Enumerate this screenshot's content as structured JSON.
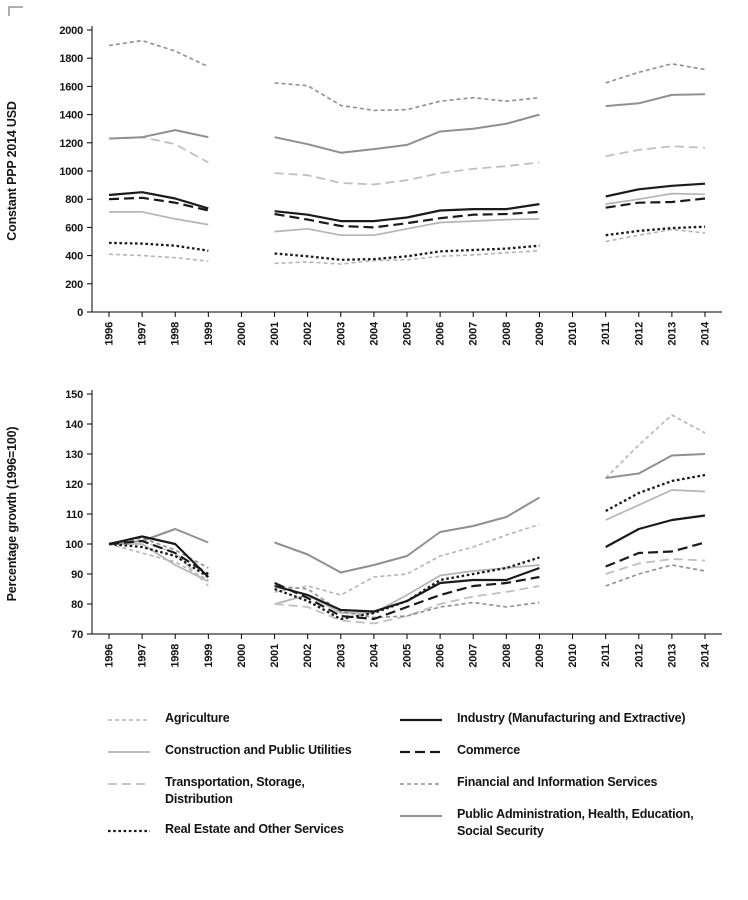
{
  "series_styles": [
    {
      "label": "Agriculture",
      "color": "#b5b5b5",
      "dash": "4 3",
      "width": 1.6
    },
    {
      "label": "Construction and Public Utilities",
      "color": "#b5b5b5",
      "dash": "",
      "width": 1.7
    },
    {
      "label": "Transportation, Storage, Distribution",
      "color": "#c0c0c0",
      "dash": "9 5",
      "width": 1.8
    },
    {
      "label": "Financial and Information Services",
      "color": "#8f8f8f",
      "dash": "4 3",
      "width": 1.6
    },
    {
      "label": "Public Administration, Health, Education, Social Security",
      "color": "#8f8f8f",
      "dash": "",
      "width": 2
    },
    {
      "label": "Real Estate and Other Services",
      "color": "#1a1a1a",
      "dash": "2.6 2.6",
      "width": 2.3
    },
    {
      "label": "Commerce",
      "color": "#1a1a1a",
      "dash": "10 5",
      "width": 2.2
    },
    {
      "label": "Industry (Manufacturing and Extractive)",
      "color": "#1a1a1a",
      "dash": "",
      "width": 2.2
    }
  ],
  "legend": {
    "columns": [
      [
        0,
        1,
        2,
        5
      ],
      [
        7,
        6,
        3,
        4
      ]
    ]
  },
  "chart_data": [
    {
      "type": "line",
      "title": "",
      "ylabel": "Constant PPP 2014 USD",
      "xlabel": "",
      "ylim": [
        0,
        2000
      ],
      "yticks": [
        0,
        200,
        400,
        600,
        800,
        1000,
        1200,
        1400,
        1600,
        1800,
        2000
      ],
      "x_years": [
        "1996",
        "1997",
        "1998",
        "1999",
        "2000",
        "2001",
        "2002",
        "2003",
        "2004",
        "2005",
        "2006",
        "2007",
        "2008",
        "2009",
        "2010",
        "2011",
        "2012",
        "2013",
        "2014"
      ],
      "grid": false,
      "series": [
        {
          "name": "Agriculture",
          "values": [
            410,
            400,
            385,
            360,
            null,
            345,
            355,
            340,
            365,
            370,
            395,
            405,
            420,
            435,
            null,
            500,
            545,
            585,
            560
          ]
        },
        {
          "name": "Construction and Public Utilities",
          "values": [
            710,
            710,
            660,
            620,
            null,
            570,
            590,
            545,
            545,
            590,
            635,
            645,
            655,
            660,
            null,
            765,
            800,
            840,
            835
          ]
        },
        {
          "name": "Transportation, Storage, Distribution",
          "values": [
            1230,
            1240,
            1190,
            1060,
            null,
            985,
            970,
            915,
            905,
            935,
            985,
            1015,
            1035,
            1060,
            null,
            1105,
            1150,
            1175,
            1165
          ]
        },
        {
          "name": "Financial and Information Services",
          "values": [
            1890,
            1925,
            1850,
            1740,
            null,
            1625,
            1605,
            1465,
            1430,
            1435,
            1495,
            1520,
            1495,
            1520,
            null,
            1625,
            1700,
            1760,
            1720
          ]
        },
        {
          "name": "Public Administration, Health, Education, Social Security",
          "values": [
            1230,
            1240,
            1290,
            1240,
            null,
            1240,
            1190,
            1130,
            1155,
            1185,
            1280,
            1300,
            1335,
            1400,
            null,
            1460,
            1480,
            1540,
            1545
          ]
        },
        {
          "name": "Real Estate and Other Services",
          "values": [
            490,
            485,
            470,
            435,
            null,
            415,
            395,
            370,
            375,
            395,
            430,
            440,
            450,
            470,
            null,
            545,
            575,
            595,
            605
          ]
        },
        {
          "name": "Commerce",
          "values": [
            800,
            810,
            775,
            720,
            null,
            695,
            655,
            610,
            600,
            630,
            665,
            690,
            695,
            710,
            null,
            740,
            775,
            780,
            805
          ]
        },
        {
          "name": "Industry (Manufacturing and Extractive)",
          "values": [
            830,
            850,
            805,
            735,
            null,
            715,
            690,
            645,
            645,
            670,
            720,
            730,
            730,
            765,
            null,
            820,
            870,
            895,
            910
          ]
        }
      ]
    },
    {
      "type": "line",
      "title": "",
      "ylabel": "Percentage growth (1996=100)",
      "xlabel": "",
      "ylim": [
        70,
        150
      ],
      "yticks": [
        70,
        80,
        90,
        100,
        110,
        120,
        130,
        140,
        150
      ],
      "x_years": [
        "1996",
        "1997",
        "1998",
        "1999",
        "2000",
        "2001",
        "2002",
        "2003",
        "2004",
        "2005",
        "2006",
        "2007",
        "2008",
        "2009",
        "2010",
        "2011",
        "2012",
        "2013",
        "2014"
      ],
      "grid": false,
      "series": [
        {
          "name": "Agriculture",
          "values": [
            100,
            97,
            94,
            88,
            null,
            84,
            86,
            83,
            89,
            90,
            96,
            99,
            103,
            106.5,
            null,
            122,
            133,
            143,
            137
          ]
        },
        {
          "name": "Construction and Public Utilities",
          "values": [
            100,
            100,
            93,
            87.5,
            null,
            80,
            83,
            77,
            77,
            83,
            89.5,
            91,
            92,
            93,
            null,
            108,
            113,
            118,
            117.5
          ]
        },
        {
          "name": "Transportation, Storage, Distribution",
          "values": [
            100,
            101,
            97,
            86,
            null,
            80,
            79,
            74.5,
            73.5,
            76,
            80,
            82.5,
            84,
            86,
            null,
            90,
            93.5,
            95,
            94.5
          ]
        },
        {
          "name": "Financial and Information Services",
          "values": [
            100,
            102,
            98,
            92,
            null,
            86,
            85,
            77.5,
            75.5,
            76,
            79,
            80.5,
            79,
            80.5,
            null,
            86,
            90,
            93,
            91
          ]
        },
        {
          "name": "Public Administration, Health, Education, Social Security",
          "values": [
            100,
            101,
            105,
            100.5,
            null,
            100.5,
            96.5,
            90.5,
            93,
            96,
            104,
            106,
            109,
            115.5,
            null,
            122,
            123.5,
            129.5,
            130
          ]
        },
        {
          "name": "Real Estate and Other Services",
          "values": [
            100,
            99,
            96,
            89,
            null,
            85,
            81,
            75,
            77,
            81,
            88,
            90,
            92,
            95.5,
            null,
            111,
            117,
            121,
            123
          ]
        },
        {
          "name": "Commerce",
          "values": [
            100,
            101,
            97,
            90,
            null,
            87,
            82,
            76,
            75,
            79,
            83,
            86,
            87,
            89,
            null,
            92.5,
            97,
            97.5,
            100.5
          ]
        },
        {
          "name": "Industry (Manufacturing and Extractive)",
          "values": [
            100,
            102.5,
            100,
            89,
            null,
            86,
            83,
            78,
            77.5,
            81,
            87,
            88,
            88,
            92,
            null,
            99,
            105,
            108,
            109.5
          ]
        }
      ]
    }
  ]
}
